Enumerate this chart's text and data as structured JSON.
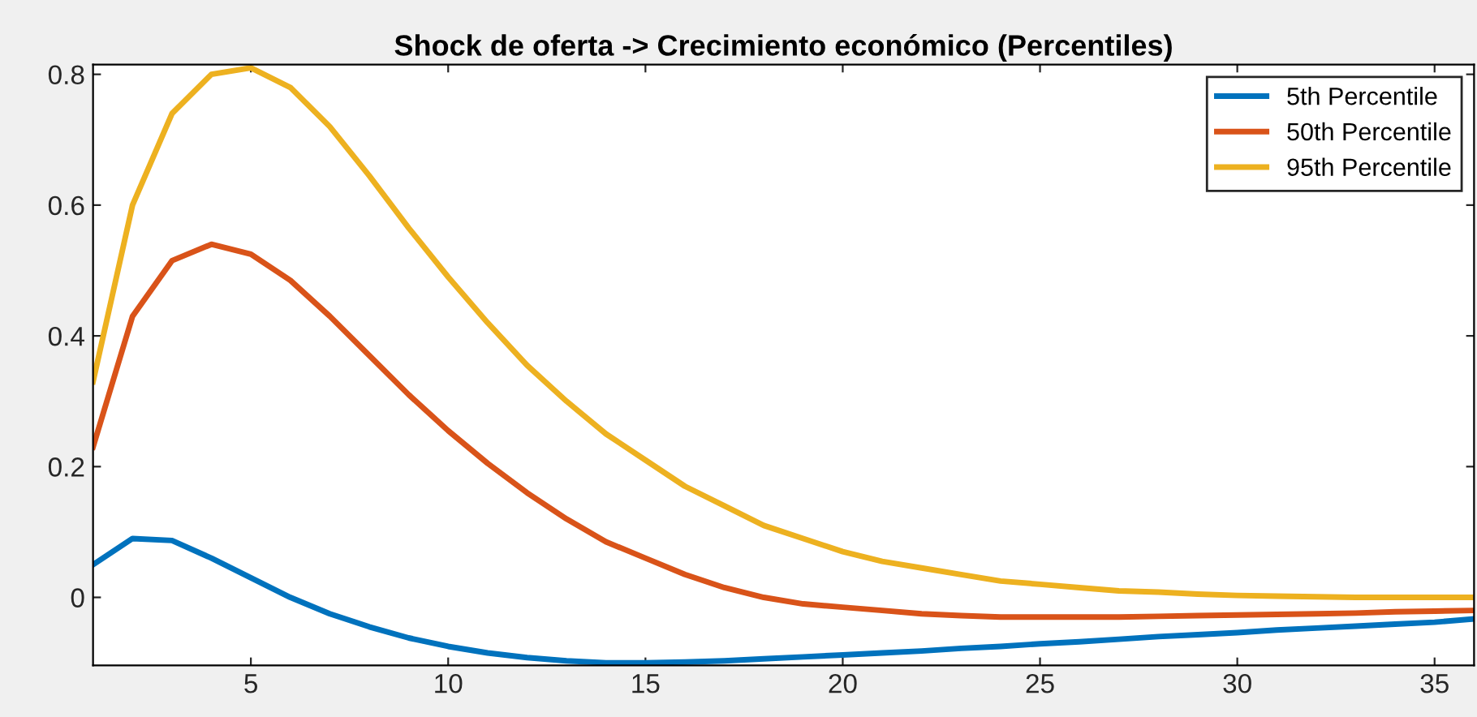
{
  "chart_data": {
    "type": "line",
    "title": "Shock de oferta -> Crecimiento económico (Percentiles)",
    "x": [
      1,
      2,
      3,
      4,
      5,
      6,
      7,
      8,
      9,
      10,
      11,
      12,
      13,
      14,
      15,
      16,
      17,
      18,
      19,
      20,
      21,
      22,
      23,
      24,
      25,
      26,
      27,
      28,
      29,
      30,
      31,
      32,
      33,
      34,
      35,
      36
    ],
    "series": [
      {
        "name": "5th Percentile",
        "color": "#0072bd",
        "values": [
          0.05,
          0.09,
          0.087,
          0.06,
          0.03,
          0.0,
          -0.025,
          -0.045,
          -0.062,
          -0.075,
          -0.085,
          -0.092,
          -0.097,
          -0.1,
          -0.1,
          -0.099,
          -0.097,
          -0.094,
          -0.091,
          -0.088,
          -0.085,
          -0.082,
          -0.078,
          -0.075,
          -0.071,
          -0.068,
          -0.064,
          -0.06,
          -0.057,
          -0.054,
          -0.05,
          -0.047,
          -0.044,
          -0.041,
          -0.038,
          -0.033
        ]
      },
      {
        "name": "50th Percentile",
        "color": "#d95319",
        "values": [
          0.23,
          0.43,
          0.515,
          0.54,
          0.525,
          0.485,
          0.43,
          0.37,
          0.31,
          0.255,
          0.205,
          0.16,
          0.12,
          0.085,
          0.06,
          0.035,
          0.015,
          0.0,
          -0.01,
          -0.015,
          -0.02,
          -0.025,
          -0.028,
          -0.03,
          -0.03,
          -0.03,
          -0.03,
          -0.029,
          -0.028,
          -0.027,
          -0.026,
          -0.025,
          -0.024,
          -0.022,
          -0.021,
          -0.02
        ]
      },
      {
        "name": "95th Percentile",
        "color": "#edb120",
        "values": [
          0.33,
          0.6,
          0.74,
          0.8,
          0.81,
          0.78,
          0.72,
          0.645,
          0.565,
          0.49,
          0.42,
          0.355,
          0.3,
          0.25,
          0.21,
          0.17,
          0.14,
          0.11,
          0.09,
          0.07,
          0.055,
          0.045,
          0.035,
          0.025,
          0.02,
          0.015,
          0.01,
          0.008,
          0.005,
          0.003,
          0.002,
          0.001,
          0.0,
          0.0,
          0.0,
          0.0
        ]
      }
    ],
    "xlim": [
      1,
      36
    ],
    "xticks": [
      5,
      10,
      15,
      20,
      25,
      30,
      35
    ],
    "ylim": [
      -0.104,
      0.815
    ],
    "yticks": [
      0,
      0.2,
      0.4,
      0.6,
      0.8
    ],
    "grid": false,
    "legend": "top right",
    "line_style": "solid",
    "marker": "none"
  }
}
